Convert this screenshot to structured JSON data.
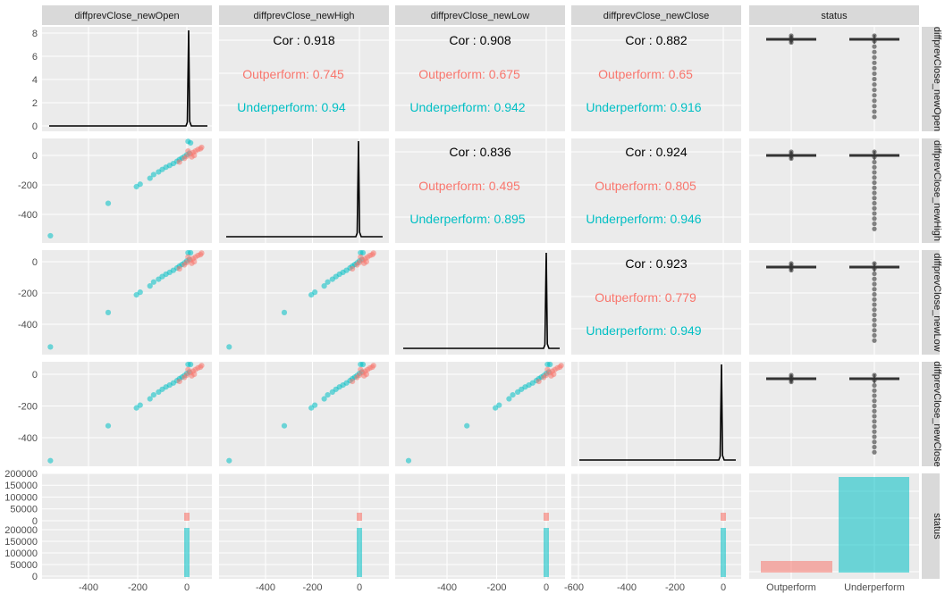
{
  "chart_data": {
    "type": "pairs",
    "variables": [
      "diffprevClose_newOpen",
      "diffprevClose_newHigh",
      "diffprevClose_newLow",
      "diffprevClose_newClose",
      "status"
    ],
    "column_strips": [
      "diffprevClose_newOpen",
      "diffprevClose_newHigh",
      "diffprevClose_newLow",
      "diffprevClose_newClose",
      "status"
    ],
    "row_strips": [
      "diffprevClose_newOpen",
      "diffprevClose_newHigh",
      "diffprevClose_newLow",
      "diffprevClose_newClose",
      "status"
    ],
    "groups": [
      {
        "name": "Outperform",
        "color": "#F8766D"
      },
      {
        "name": "Underperform",
        "color": "#00BFC4"
      }
    ],
    "x_ticks_numeric": [
      "-400",
      "-200",
      "0"
    ],
    "x_ticks_last_col": "-600",
    "x_ticks_status": [
      "Outperform",
      "Underperform"
    ],
    "y_ticks_row1": [
      "0",
      "2",
      "4",
      "6",
      "8"
    ],
    "y_ticks_rows": [
      "0",
      "-200",
      "-400"
    ],
    "y_ticks_counts": [
      "200000",
      "150000",
      "100000",
      "50000",
      "0"
    ],
    "correlations": [
      {
        "row": 0,
        "col": 1,
        "overall": "Cor : 0.918",
        "outperform": "Outperform: 0.745",
        "underperform": "Underperform: 0.94"
      },
      {
        "row": 0,
        "col": 2,
        "overall": "Cor : 0.908",
        "outperform": "Outperform: 0.675",
        "underperform": "Underperform: 0.942"
      },
      {
        "row": 0,
        "col": 3,
        "overall": "Cor : 0.882",
        "outperform": "Outperform: 0.65",
        "underperform": "Underperform: 0.916"
      },
      {
        "row": 1,
        "col": 2,
        "overall": "Cor : 0.836",
        "outperform": "Outperform: 0.495",
        "underperform": "Underperform: 0.895"
      },
      {
        "row": 1,
        "col": 3,
        "overall": "Cor : 0.924",
        "outperform": "Outperform: 0.805",
        "underperform": "Underperform: 0.946"
      },
      {
        "row": 2,
        "col": 3,
        "overall": "Cor : 0.923",
        "outperform": "Outperform: 0.779",
        "underperform": "Underperform: 0.949"
      }
    ],
    "status_counts": [
      {
        "name": "Outperform",
        "value": 22000
      },
      {
        "name": "Underperform",
        "value": 181000
      }
    ],
    "scatter_points": [
      {
        "x": -555,
        "y": -545,
        "g": 1
      },
      {
        "x": -320,
        "y": -325,
        "g": 1
      },
      {
        "x": -205,
        "y": -212,
        "g": 1
      },
      {
        "x": -190,
        "y": -195,
        "g": 1
      },
      {
        "x": -150,
        "y": -155,
        "g": 1
      },
      {
        "x": -135,
        "y": -130,
        "g": 1
      },
      {
        "x": -115,
        "y": -112,
        "g": 1
      },
      {
        "x": -100,
        "y": -95,
        "g": 1
      },
      {
        "x": -85,
        "y": -80,
        "g": 1
      },
      {
        "x": -70,
        "y": -68,
        "g": 1
      },
      {
        "x": -55,
        "y": -55,
        "g": 1
      },
      {
        "x": -40,
        "y": -40,
        "g": 1
      },
      {
        "x": -30,
        "y": -28,
        "g": 1
      },
      {
        "x": -20,
        "y": -18,
        "g": 1
      },
      {
        "x": -10,
        "y": -8,
        "g": 1
      },
      {
        "x": 0,
        "y": 5,
        "g": 1
      },
      {
        "x": 10,
        "y": 15,
        "g": 1
      },
      {
        "x": 5,
        "y": 95,
        "g": 1
      },
      {
        "x": 15,
        "y": 85,
        "g": 1
      },
      {
        "x": -30,
        "y": -45,
        "g": 0
      },
      {
        "x": -10,
        "y": -20,
        "g": 0
      },
      {
        "x": 0,
        "y": -5,
        "g": 0
      },
      {
        "x": 15,
        "y": 10,
        "g": 0
      },
      {
        "x": 25,
        "y": 20,
        "g": 0
      },
      {
        "x": 35,
        "y": 30,
        "g": 0
      },
      {
        "x": 45,
        "y": 40,
        "g": 0
      },
      {
        "x": 55,
        "y": 45,
        "g": 0
      },
      {
        "x": 60,
        "y": 55,
        "g": 0
      },
      {
        "x": 20,
        "y": -10,
        "g": 0
      },
      {
        "x": 30,
        "y": 0,
        "g": 0
      },
      {
        "x": 5,
        "y": 30,
        "g": 0
      }
    ]
  }
}
